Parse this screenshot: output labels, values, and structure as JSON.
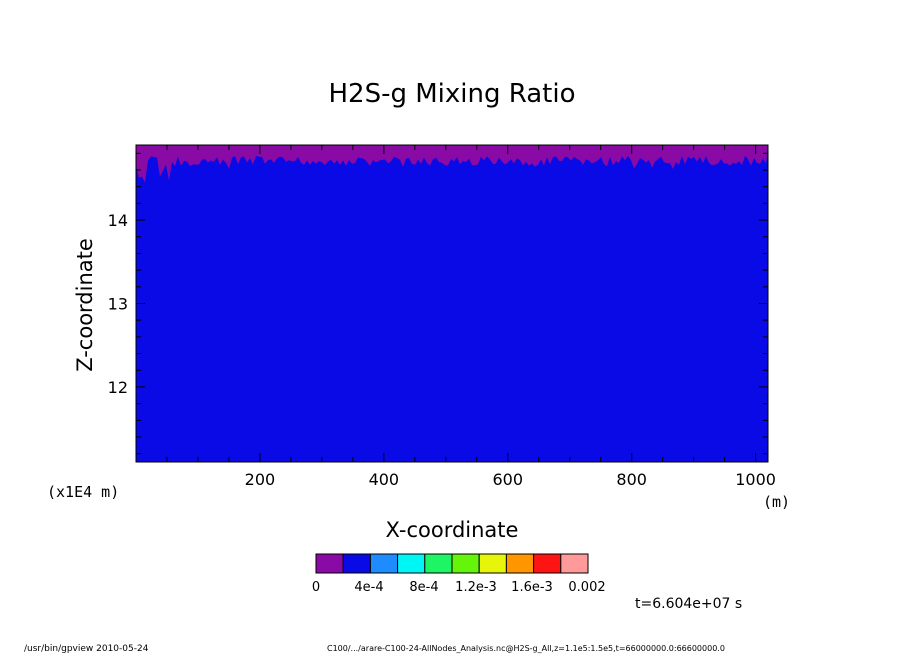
{
  "chart_data": {
    "type": "heatmap",
    "title": "H2S-g Mixing Ratio",
    "xlabel": "X-coordinate",
    "ylabel": "Z-coordinate",
    "x_unit": "(m)",
    "y_unit": "(x1E4 m)",
    "xlim": [
      0,
      1020
    ],
    "ylim": [
      11.1,
      14.9
    ],
    "x_ticks": [
      200,
      400,
      600,
      800,
      1000
    ],
    "y_ticks": [
      12,
      13,
      14
    ],
    "grid": false,
    "field": {
      "background_value": "4e-4",
      "top_band_value": "0",
      "top_band_lower_z_min": 14.45,
      "top_band_lower_z_max": 14.82
    },
    "colorbar": {
      "tick_labels": [
        "0",
        "4e-4",
        "8e-4",
        "1.2e-3",
        "1.6e-3",
        "0.002"
      ],
      "colors": [
        "#8a0aa5",
        "#0a0ae6",
        "#1e8cff",
        "#00f5f5",
        "#1ef564",
        "#64f50a",
        "#e6f50a",
        "#ff9600",
        "#ff1414",
        "#ff9a9a"
      ]
    },
    "time_label": "t=6.604e+07 s"
  },
  "footer": {
    "left": "/usr/bin/gpview   2010-05-24",
    "right": "C100/.../arare-C100-24-AllNodes_Analysis.nc@H2S-g_All,z=1.1e5:1.5e5,t=66000000.0:66600000.0"
  },
  "colors": {
    "background": "#ffffff",
    "axis": "#000000"
  }
}
